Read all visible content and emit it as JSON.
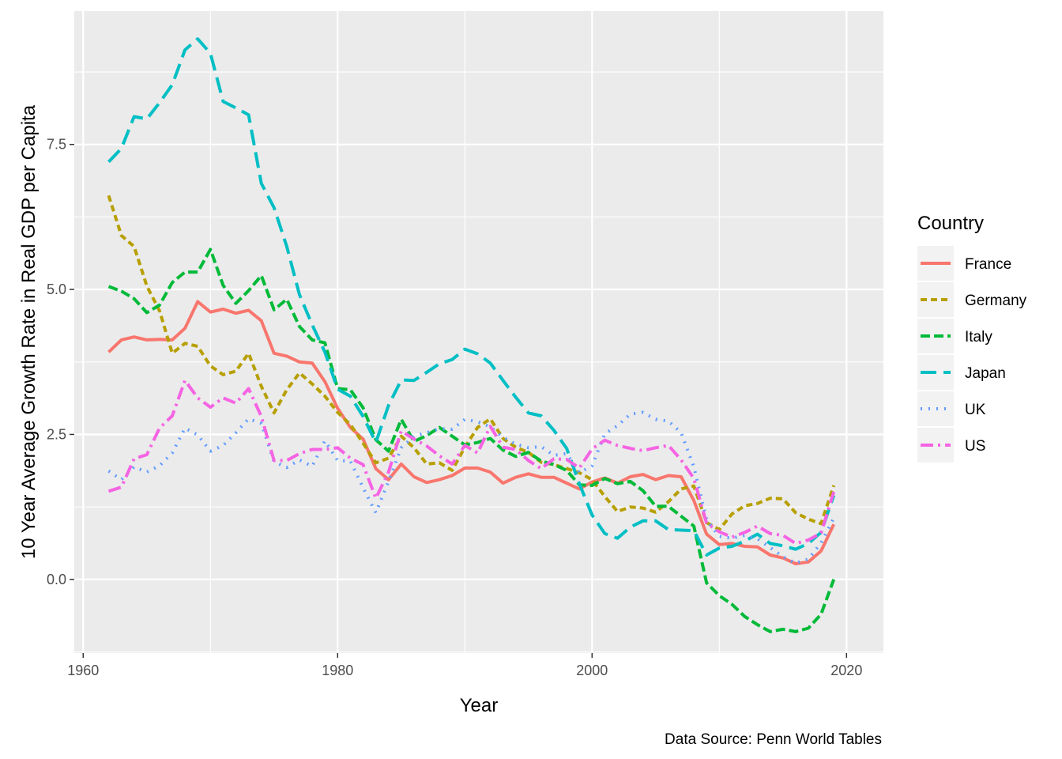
{
  "chart_data": {
    "type": "line",
    "title": "",
    "xlabel": "Year",
    "ylabel": "10 Year Average Growth Rate in Real GDP per Capita",
    "caption": "Data Source: Penn World Tables",
    "xlim": [
      1959.2,
      1962.4
    ],
    "ylim": [
      -1.3,
      9.9
    ],
    "x_ticks": [
      1960,
      1980,
      2000,
      2020
    ],
    "x_tick_labels": [
      "1960",
      "1980",
      "2000",
      "2020"
    ],
    "y_ticks": [
      0.0,
      2.5,
      5.0,
      7.5
    ],
    "y_tick_labels": [
      "0.0",
      "2.5",
      "5.0",
      "7.5"
    ],
    "grid": true,
    "legend": {
      "title": "Country",
      "position": "right"
    },
    "x": [
      1962,
      1963,
      1964,
      1965,
      1966,
      1967,
      1968,
      1969,
      1970,
      1971,
      1972,
      1973,
      1974,
      1975,
      1976,
      1977,
      1978,
      1979,
      1980,
      1981,
      1982,
      1983,
      1984,
      1985,
      1986,
      1987,
      1988,
      1989,
      1990,
      1991,
      1992,
      1993,
      1994,
      1995,
      1996,
      1997,
      1998,
      1999,
      2000,
      2001,
      2002,
      2003,
      2004,
      2005,
      2006,
      2007,
      2008,
      2009,
      2010,
      2011,
      2012,
      2013,
      2014,
      2015,
      2016,
      2017,
      2018,
      2019
    ],
    "series": [
      {
        "name": "France",
        "color": "#F8766D",
        "dash": "solid",
        "values": [
          3.92,
          4.13,
          4.18,
          4.13,
          4.14,
          4.13,
          4.33,
          4.79,
          4.61,
          4.66,
          4.59,
          4.64,
          4.46,
          3.9,
          3.85,
          3.75,
          3.73,
          3.41,
          2.95,
          2.62,
          2.42,
          1.91,
          1.72,
          1.99,
          1.77,
          1.67,
          1.72,
          1.79,
          1.92,
          1.92,
          1.85,
          1.66,
          1.76,
          1.82,
          1.76,
          1.76,
          1.66,
          1.56,
          1.68,
          1.75,
          1.66,
          1.77,
          1.81,
          1.72,
          1.79,
          1.77,
          1.36,
          0.78,
          0.6,
          0.62,
          0.57,
          0.56,
          0.42,
          0.37,
          0.27,
          0.3,
          0.49,
          0.95
        ]
      },
      {
        "name": "Germany",
        "color": "#B79F00",
        "dash": "8,5",
        "values": [
          6.62,
          5.93,
          5.74,
          5.06,
          4.63,
          3.9,
          4.07,
          4.02,
          3.68,
          3.53,
          3.59,
          3.9,
          3.33,
          2.87,
          3.27,
          3.56,
          3.37,
          3.16,
          2.88,
          2.67,
          2.35,
          2.01,
          2.09,
          2.47,
          2.27,
          1.99,
          2.01,
          1.88,
          2.28,
          2.62,
          2.77,
          2.43,
          2.28,
          2.19,
          2.02,
          1.98,
          1.91,
          1.84,
          1.72,
          1.43,
          1.17,
          1.25,
          1.23,
          1.16,
          1.34,
          1.56,
          1.61,
          0.98,
          0.86,
          1.13,
          1.27,
          1.31,
          1.4,
          1.39,
          1.15,
          1.04,
          0.96,
          1.62
        ]
      },
      {
        "name": "Italy",
        "color": "#00BA38",
        "dash": "12,5",
        "values": [
          5.05,
          4.97,
          4.84,
          4.6,
          4.73,
          5.12,
          5.3,
          5.3,
          5.69,
          5.07,
          4.76,
          4.98,
          5.24,
          4.65,
          4.83,
          4.36,
          4.13,
          4.08,
          3.29,
          3.27,
          2.96,
          2.41,
          2.21,
          2.76,
          2.38,
          2.48,
          2.62,
          2.47,
          2.32,
          2.36,
          2.43,
          2.23,
          2.12,
          2.19,
          2.04,
          1.98,
          1.88,
          1.63,
          1.62,
          1.74,
          1.65,
          1.69,
          1.53,
          1.26,
          1.26,
          1.09,
          0.92,
          -0.06,
          -0.28,
          -0.43,
          -0.64,
          -0.78,
          -0.9,
          -0.86,
          -0.9,
          -0.84,
          -0.6,
          0.0
        ]
      },
      {
        "name": "Japan",
        "color": "#00BFC4",
        "dash": "20,9",
        "values": [
          7.2,
          7.43,
          7.98,
          7.94,
          8.22,
          8.53,
          9.13,
          9.32,
          9.07,
          8.24,
          8.13,
          8.01,
          6.83,
          6.41,
          5.74,
          4.91,
          4.39,
          3.92,
          3.28,
          3.16,
          2.81,
          2.36,
          3.0,
          3.44,
          3.43,
          3.57,
          3.72,
          3.79,
          3.97,
          3.89,
          3.73,
          3.43,
          3.14,
          2.87,
          2.82,
          2.57,
          2.26,
          1.65,
          1.11,
          0.79,
          0.71,
          0.9,
          1.01,
          1.01,
          0.86,
          0.85,
          0.84,
          0.42,
          0.54,
          0.57,
          0.66,
          0.78,
          0.62,
          0.58,
          0.52,
          0.62,
          0.81,
          1.45
        ]
      },
      {
        "name": "UK",
        "color": "#619CFF",
        "dash": "2,8",
        "values": [
          1.87,
          1.72,
          1.94,
          1.85,
          1.96,
          2.18,
          2.61,
          2.49,
          2.21,
          2.31,
          2.53,
          2.77,
          2.69,
          2.03,
          1.93,
          2.06,
          1.95,
          2.39,
          2.05,
          2.04,
          1.58,
          1.15,
          1.69,
          2.27,
          2.47,
          2.53,
          2.6,
          2.59,
          2.76,
          2.72,
          2.63,
          2.45,
          2.33,
          2.27,
          2.29,
          2.14,
          2.17,
          1.84,
          1.96,
          2.51,
          2.65,
          2.85,
          2.88,
          2.76,
          2.73,
          2.53,
          1.94,
          1.03,
          0.74,
          0.71,
          0.76,
          0.7,
          0.55,
          0.39,
          0.28,
          0.35,
          0.63,
          1.06
        ]
      },
      {
        "name": "US",
        "color": "#F564E3",
        "dash": "16,6,3,6",
        "values": [
          1.52,
          1.59,
          2.08,
          2.15,
          2.61,
          2.82,
          3.43,
          3.13,
          2.97,
          3.13,
          3.04,
          3.29,
          2.81,
          2.05,
          2.05,
          2.17,
          2.24,
          2.24,
          2.27,
          2.09,
          1.98,
          1.4,
          1.85,
          2.56,
          2.42,
          2.3,
          2.13,
          1.99,
          2.31,
          2.18,
          2.64,
          2.28,
          2.24,
          2.05,
          1.91,
          2.08,
          2.07,
          1.92,
          2.25,
          2.4,
          2.31,
          2.26,
          2.22,
          2.27,
          2.31,
          2.06,
          1.74,
          0.97,
          0.82,
          0.73,
          0.81,
          0.92,
          0.79,
          0.76,
          0.62,
          0.68,
          0.8,
          1.51
        ]
      }
    ]
  }
}
